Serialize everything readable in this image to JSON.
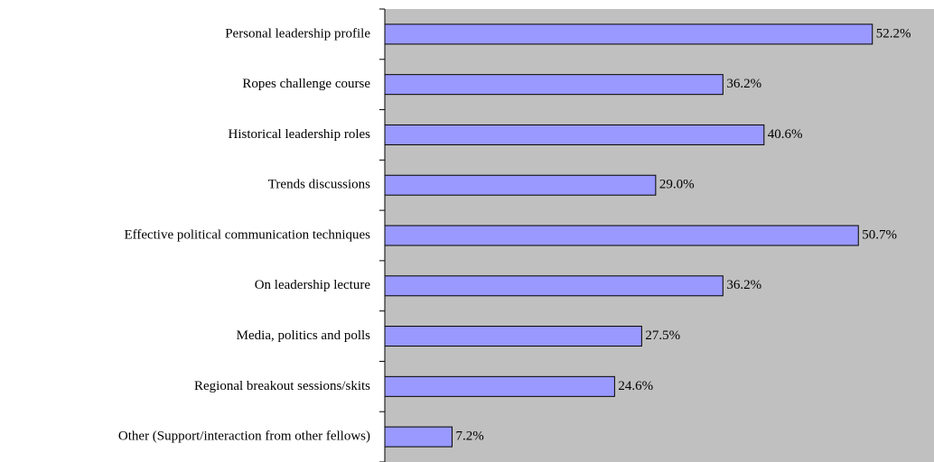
{
  "chart_data": {
    "type": "bar",
    "orientation": "horizontal",
    "categories": [
      "Personal leadership profile",
      "Ropes challenge course",
      "Historical leadership roles",
      "Trends discussions",
      "Effective political communication techniques",
      "On leadership lecture",
      "Media, politics and polls",
      "Regional breakout sessions/skits",
      "Other (Support/interaction from other fellows)"
    ],
    "values": [
      52.2,
      36.2,
      40.6,
      29.0,
      50.7,
      36.2,
      27.5,
      24.6,
      7.2
    ],
    "value_labels": [
      "52.2%",
      "36.2%",
      "40.6%",
      "29.0%",
      "50.7%",
      "36.2%",
      "27.5%",
      "24.6%",
      "7.2%"
    ],
    "color": "#9999ff",
    "plot_background": "#c0c0c0",
    "xlim": [
      0,
      58.8
    ]
  }
}
